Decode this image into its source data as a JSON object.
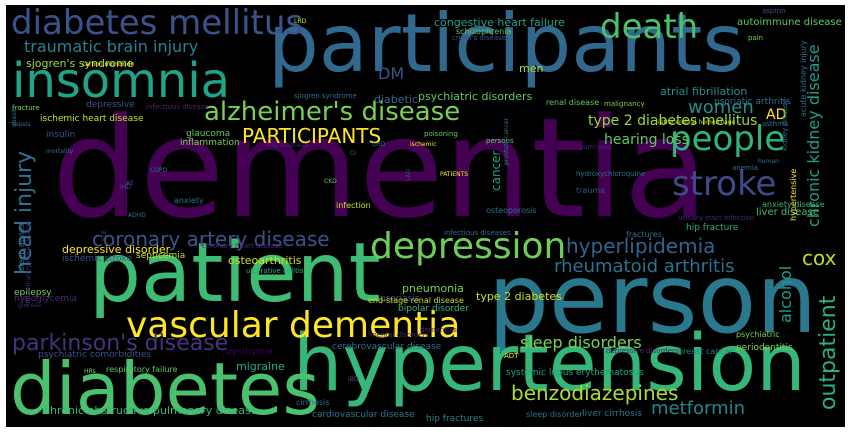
{
  "background": "#000000",
  "page_background": "#ffffff",
  "words": [
    {
      "text": "dementia",
      "color": "#440154"
    },
    {
      "text": "participants",
      "color": "#31688e"
    },
    {
      "text": "person",
      "color": "#2a788e"
    },
    {
      "text": "hypertension",
      "color": "#35b779"
    },
    {
      "text": "patient",
      "color": "#3fbc73"
    },
    {
      "text": "diabetes",
      "color": "#4ac16d"
    },
    {
      "text": "insomnia",
      "color": "#20a386"
    },
    {
      "text": "diabetes mellitus",
      "color": "#3b528b"
    },
    {
      "text": "death",
      "color": "#4ac16d"
    },
    {
      "text": "depression",
      "color": "#6ece58"
    },
    {
      "text": "vascular dementia",
      "color": "#fde725"
    },
    {
      "text": "alzheimer's disease",
      "color": "#7ad151"
    },
    {
      "text": "people",
      "color": "#2fb47c"
    },
    {
      "text": "stroke",
      "color": "#3e4a89"
    },
    {
      "text": "parkinson's disease",
      "color": "#46327e"
    },
    {
      "text": "head injury",
      "color": "#2c728e"
    },
    {
      "text": "coronary artery disease",
      "color": "#3b528b"
    },
    {
      "text": "hyperlipidemia",
      "color": "#33638d"
    },
    {
      "text": "rheumatoid arthritis",
      "color": "#2c728e"
    },
    {
      "text": "traumatic brain injury",
      "color": "#26828e"
    },
    {
      "text": "PARTICIPANTS",
      "color": "#fde725"
    },
    {
      "text": "outpatient",
      "color": "#2ab07f"
    },
    {
      "text": "chronic kidney disease",
      "color": "#1f9e89"
    },
    {
      "text": "benzodiazepines",
      "color": "#addc30"
    },
    {
      "text": "metformin",
      "color": "#23888e"
    },
    {
      "text": "sleep disorders",
      "color": "#7ad151"
    },
    {
      "text": "women",
      "color": "#21918c"
    },
    {
      "text": "cox",
      "color": "#b5de2b"
    },
    {
      "text": "alcohol",
      "color": "#1f9e89"
    },
    {
      "text": "type 2 diabetes mellitus",
      "color": "#9bd93c"
    },
    {
      "text": "hearing loss",
      "color": "#5ec962"
    },
    {
      "text": "DM",
      "color": "#3b528b"
    },
    {
      "text": "congestive heart failure",
      "color": "#20a386"
    },
    {
      "text": "autoimmune disease",
      "color": "#5ec962"
    },
    {
      "text": "sjogren's syndrome",
      "color": "#a0da39"
    },
    {
      "text": "diabetic",
      "color": "#31688e"
    },
    {
      "text": "psychiatric disorders",
      "color": "#5ec962"
    },
    {
      "text": "atrial fibrillation",
      "color": "#21918c"
    },
    {
      "text": "psoriatic arthritis",
      "color": "#2c728e"
    },
    {
      "text": "men",
      "color": "#a8db34"
    },
    {
      "text": "liver disease",
      "color": "#44bf70"
    },
    {
      "text": "type 2 diabetes",
      "color": "#cde11d"
    },
    {
      "text": "ischemic heart disease",
      "color": "#c8e020"
    },
    {
      "text": "insulin",
      "color": "#3b528b"
    },
    {
      "text": "glaucoma",
      "color": "#5ec962"
    },
    {
      "text": "inflammation",
      "color": "#7ad151"
    },
    {
      "text": "cancer",
      "color": "#1f9e89"
    },
    {
      "text": "osteoarthritis",
      "color": "#cde11d"
    },
    {
      "text": "pneumonia",
      "color": "#7ad151"
    },
    {
      "text": "depressive disorder",
      "color": "#fde725"
    },
    {
      "text": "ischemic stroke",
      "color": "#3b528b"
    },
    {
      "text": "epilepsy",
      "color": "#7ad151"
    },
    {
      "text": "hypoglycemia",
      "color": "#482878"
    },
    {
      "text": "psoriasis",
      "color": "#3b528b"
    },
    {
      "text": "bipolar disorder",
      "color": "#35b779"
    },
    {
      "text": "migraine",
      "color": "#27ad81"
    },
    {
      "text": "septicemia",
      "color": "#c8e020"
    },
    {
      "text": "dysthymia",
      "color": "#440154"
    },
    {
      "text": "systemic lupus erythematosus",
      "color": "#20a386"
    },
    {
      "text": "chronic obstructive pulmonary disease",
      "color": "#35b779"
    },
    {
      "text": "cardiovascular disease",
      "color": "#2a788e"
    },
    {
      "text": "cerebrovascular disease",
      "color": "#2c728e"
    },
    {
      "text": "psychiatric comorbidities",
      "color": "#3b528b"
    },
    {
      "text": "respiratory failure",
      "color": "#5ec962"
    },
    {
      "text": "hip fractures",
      "color": "#26828e"
    },
    {
      "text": "sleep disorder",
      "color": "#2c728e"
    },
    {
      "text": "liver cirrhosis",
      "color": "#2c728e"
    },
    {
      "text": "cirrhosis",
      "color": "#2c728e"
    },
    {
      "text": "periodontitis",
      "color": "#7ad151"
    },
    {
      "text": "psychiatric",
      "color": "#7ad151"
    },
    {
      "text": "breast cancer",
      "color": "#26828e"
    },
    {
      "text": "depressive disorders",
      "color": "#482878"
    },
    {
      "text": "end-stage renal disease",
      "color": "#c8e020"
    },
    {
      "text": "renal disease",
      "color": "#5ec962"
    },
    {
      "text": "hip fracture",
      "color": "#27ad81"
    },
    {
      "text": "fractures",
      "color": "#2c728e"
    },
    {
      "text": "osteoporosis",
      "color": "#2c728e"
    },
    {
      "text": "infectious disease",
      "color": "#482878"
    },
    {
      "text": "infection",
      "color": "#c8e020"
    },
    {
      "text": "anxiety disease",
      "color": "#35b779"
    },
    {
      "text": "anxiety",
      "color": "#2c728e"
    },
    {
      "text": "hypertensive",
      "color": "#fde725"
    },
    {
      "text": "trauma",
      "color": "#3b528b"
    },
    {
      "text": "hydroxychloroquine",
      "color": "#2c728e"
    },
    {
      "text": "anemia",
      "color": "#2c728e"
    },
    {
      "text": "asthma",
      "color": "#2c728e"
    },
    {
      "text": "malignancy",
      "color": "#7ad151"
    },
    {
      "text": "coronary heart disease",
      "color": "#482878"
    },
    {
      "text": "intracerebral hemorrhage",
      "color": "#c8e020"
    },
    {
      "text": "urinary tract infection",
      "color": "#482878"
    },
    {
      "text": "fracture",
      "color": "#7ad151"
    },
    {
      "text": "sleep apnea",
      "color": "#2c728e"
    },
    {
      "text": "inflammatory bowel disease",
      "color": "#482878"
    },
    {
      "text": "carbon monoxide",
      "color": "#fde725"
    },
    {
      "text": "schizophrenia",
      "color": "#5ec962"
    },
    {
      "text": "crohn's disease",
      "color": "#3b528b"
    },
    {
      "text": "aspirin",
      "color": "#3b528b"
    },
    {
      "text": "pain",
      "color": "#7ad151"
    },
    {
      "text": "HIV",
      "color": "#482878"
    },
    {
      "text": "LRD",
      "color": "#cde11d"
    },
    {
      "text": "AD",
      "color": "#fde725"
    },
    {
      "text": "ADT",
      "color": "#fde725"
    },
    {
      "text": "human",
      "color": "#2c728e"
    },
    {
      "text": "obesity",
      "color": "#2c728e"
    },
    {
      "text": "sepsis",
      "color": "#2c728e"
    },
    {
      "text": "ulcerative colitis",
      "color": "#27ad81"
    },
    {
      "text": "glucose",
      "color": "#482878"
    },
    {
      "text": "persons",
      "color": "#5ec962"
    },
    {
      "text": "poisoning",
      "color": "#5ec962"
    },
    {
      "text": "ischemic",
      "color": "#fde725"
    },
    {
      "text": "mental illness",
      "color": "#482878"
    },
    {
      "text": "participant",
      "color": "#482878"
    },
    {
      "text": "PATIENTS",
      "color": "#fde725"
    },
    {
      "text": "prostate cancer",
      "color": "#2c728e"
    },
    {
      "text": "ADHD",
      "color": "#2c728e"
    },
    {
      "text": "COPD",
      "color": "#2c728e"
    },
    {
      "text": "CHD",
      "color": "#2c728e"
    },
    {
      "text": "LAD",
      "color": "#3b528b"
    },
    {
      "text": "dementias",
      "color": "#482878"
    },
    {
      "text": "mental disorders",
      "color": "#482878"
    },
    {
      "text": "sjogren syndrome",
      "color": "#2c728e"
    },
    {
      "text": "kidney disease",
      "color": "#2c728e"
    },
    {
      "text": "infectious diseases",
      "color": "#2c728e"
    },
    {
      "text": "depressive",
      "color": "#3b528b"
    },
    {
      "text": "SLE",
      "color": "#3b528b"
    },
    {
      "text": "AE",
      "color": "#3b528b"
    },
    {
      "text": "IHD",
      "color": "#3b528b"
    },
    {
      "text": "IBD",
      "color": "#3b528b"
    },
    {
      "text": "HRs",
      "color": "#7ad151"
    },
    {
      "text": "CKD",
      "color": "#5ec962"
    },
    {
      "text": "CI",
      "color": "#2c728e"
    },
    {
      "text": "mortality",
      "color": "#2c728e"
    },
    {
      "text": "acute kidney injury",
      "color": "#2c728e"
    }
  ]
}
